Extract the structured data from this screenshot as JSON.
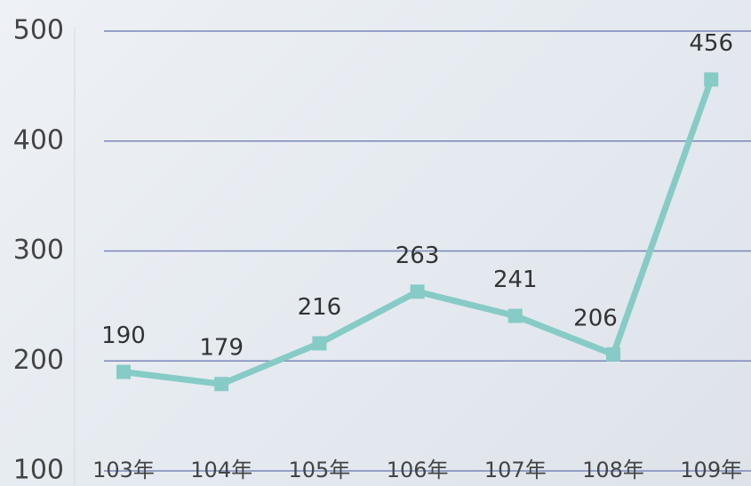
{
  "chart_data": {
    "type": "line",
    "categories": [
      "103年",
      "104年",
      "105年",
      "106年",
      "107年",
      "108年",
      "109年"
    ],
    "values": [
      190,
      179,
      216,
      263,
      241,
      206,
      456
    ],
    "color": "#86cbc6",
    "ylim": [
      100,
      500
    ],
    "yticks": [
      100,
      200,
      300,
      400,
      500
    ],
    "grid": true
  }
}
